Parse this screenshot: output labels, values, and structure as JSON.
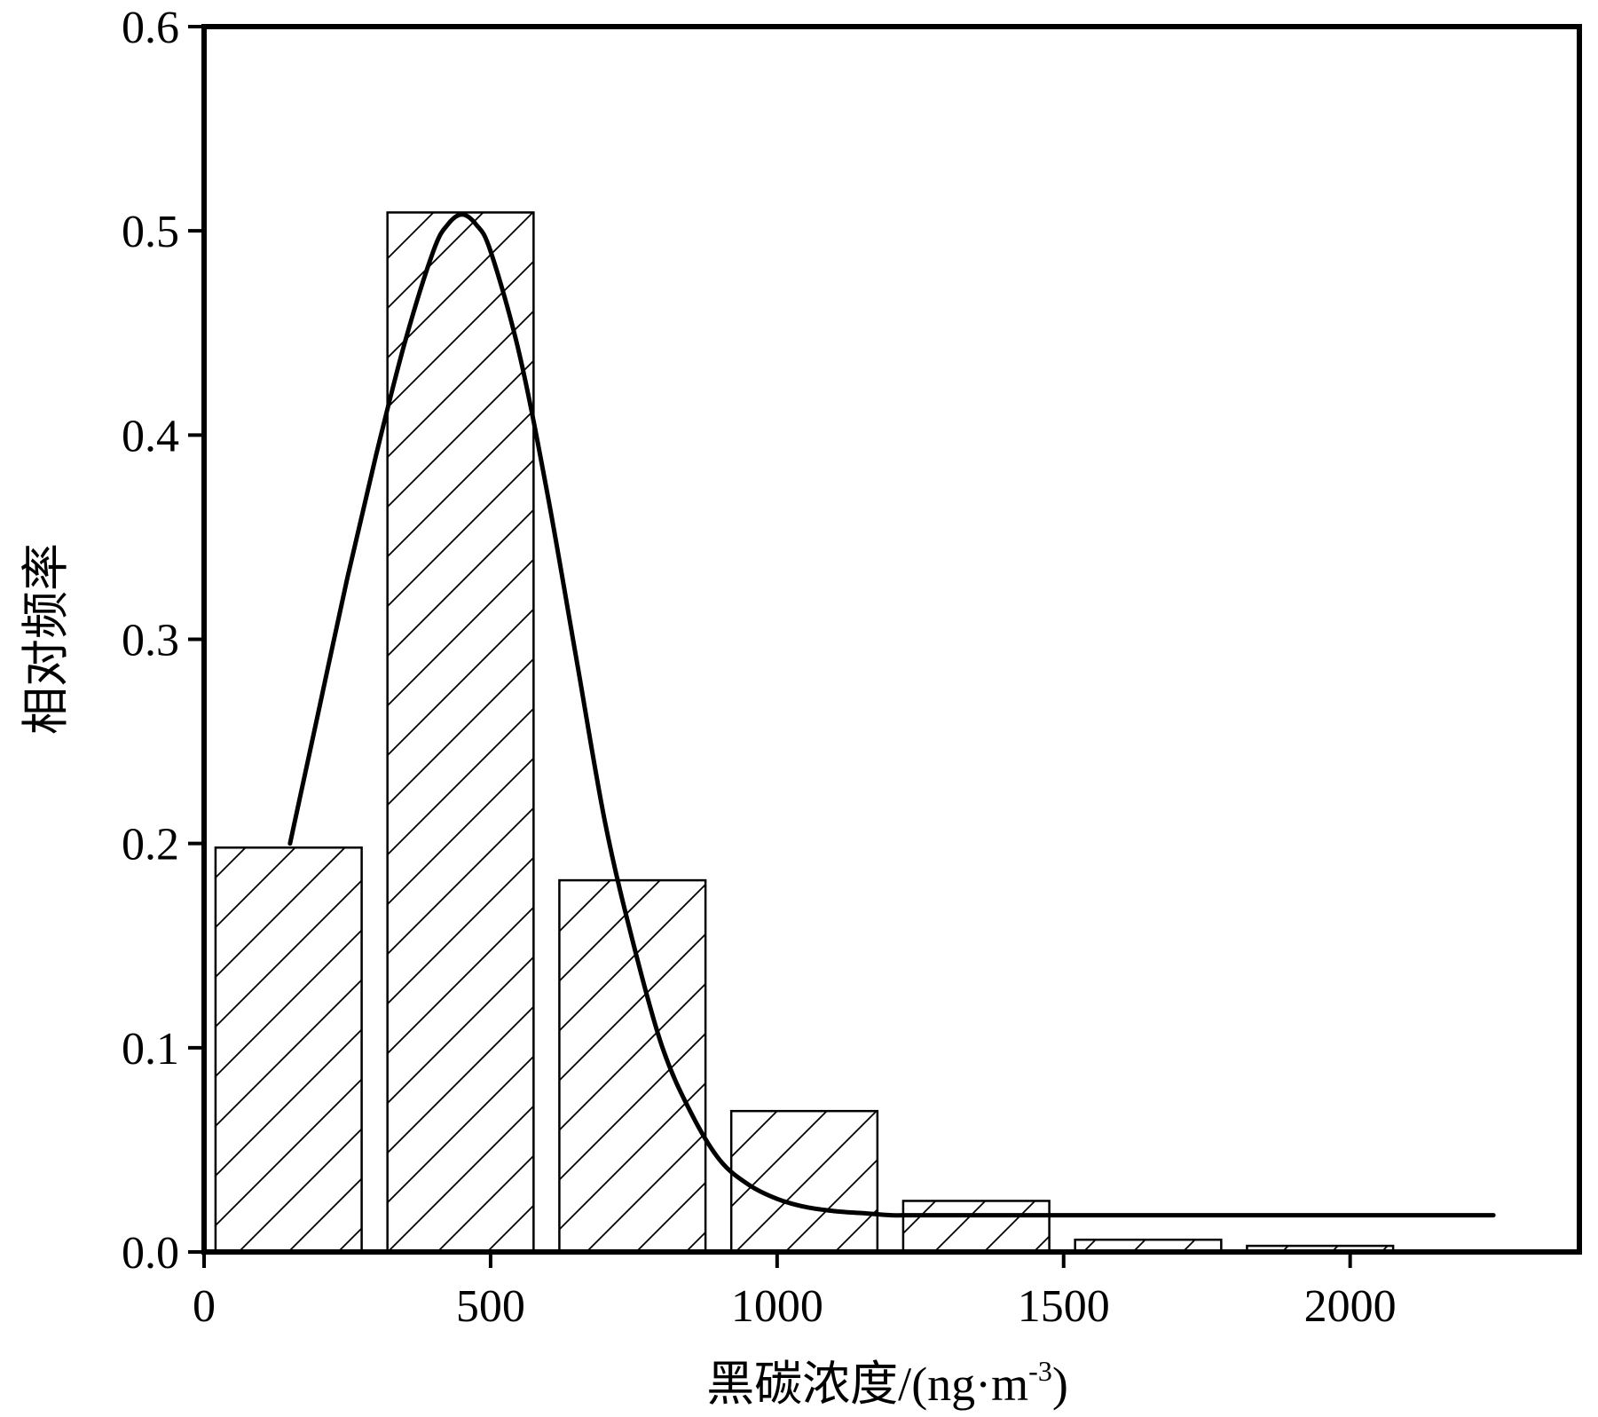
{
  "chart_data": {
    "type": "bar",
    "xlabel": "黑碳浓度/(ng·m",
    "xlabel_sup": "-3",
    "xlabel_close": ")",
    "ylabel": "相对频率",
    "xlim": [
      0,
      2400
    ],
    "ylim": [
      0,
      0.6
    ],
    "x_ticks": [
      {
        "value": 0,
        "label": "0"
      },
      {
        "value": 500,
        "label": "500"
      },
      {
        "value": 1000,
        "label": "1000"
      },
      {
        "value": 1500,
        "label": "1500"
      },
      {
        "value": 2000,
        "label": "2000"
      }
    ],
    "y_ticks": [
      {
        "value": 0.0,
        "label": "0.0"
      },
      {
        "value": 0.1,
        "label": "0.1"
      },
      {
        "value": 0.2,
        "label": "0.2"
      },
      {
        "value": 0.3,
        "label": "0.3"
      },
      {
        "value": 0.4,
        "label": "0.4"
      },
      {
        "value": 0.5,
        "label": "0.5"
      },
      {
        "value": 0.6,
        "label": "0.6"
      }
    ],
    "bars": [
      {
        "x0": 20,
        "x1": 275,
        "value": 0.198
      },
      {
        "x0": 320,
        "x1": 575,
        "value": 0.509
      },
      {
        "x0": 620,
        "x1": 875,
        "value": 0.182
      },
      {
        "x0": 920,
        "x1": 1175,
        "value": 0.069
      },
      {
        "x0": 1220,
        "x1": 1475,
        "value": 0.025
      },
      {
        "x0": 1520,
        "x1": 1775,
        "value": 0.006
      },
      {
        "x0": 1820,
        "x1": 2075,
        "value": 0.003
      }
    ],
    "bar_fill": "hatched",
    "fit_curve": {
      "type": "line",
      "x": [
        150,
        200,
        250,
        300,
        350,
        400,
        425,
        450,
        475,
        500,
        550,
        600,
        650,
        700,
        750,
        800,
        850,
        900,
        950,
        1000,
        1050,
        1100,
        1150,
        1200,
        1250,
        1500,
        2000,
        2250
      ],
      "y": [
        0.2,
        0.265,
        0.33,
        0.39,
        0.445,
        0.49,
        0.503,
        0.508,
        0.503,
        0.49,
        0.44,
        0.37,
        0.29,
        0.21,
        0.15,
        0.1,
        0.068,
        0.045,
        0.033,
        0.026,
        0.022,
        0.02,
        0.019,
        0.018,
        0.018,
        0.018,
        0.018,
        0.018
      ]
    },
    "grid": false,
    "legend": "none",
    "colors": {
      "axis": "#000000",
      "bar_stroke": "#000000",
      "bar_fill": "#ffffff",
      "curve": "#000000"
    }
  }
}
